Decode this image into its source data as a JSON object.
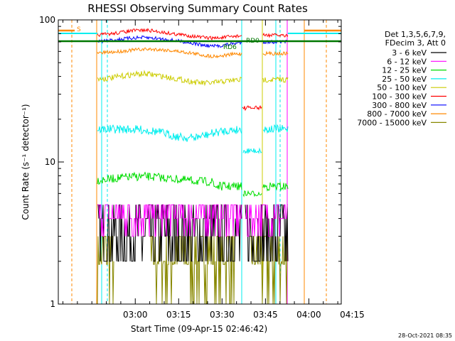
{
  "chart_data": {
    "type": "line",
    "title": "RHESSI Observing Summary Count Rates",
    "xlabel": "Start Time (09-Apr-15 02:46:42)",
    "ylabel": "Count Rate (s⁻¹ detector⁻¹)",
    "y_scale": "log",
    "ylim": [
      1,
      100
    ],
    "xlim_minutes_after_start": [
      -13.3,
      84.5
    ],
    "x_tick_labels": [
      "03:00",
      "03:15",
      "03:30",
      "03:45",
      "04:00",
      "04:15"
    ],
    "x_tick_minutes": [
      13.3,
      28.3,
      43.3,
      58.3,
      73.3,
      88.3
    ],
    "y_tick_labels": [
      "1",
      "10",
      "100"
    ],
    "y_tick_values": [
      1,
      10,
      100
    ],
    "legend": {
      "header_line1": "Det 1,3,5,6,7,9,",
      "header_line2": "FDecim 3, Att 0",
      "placement": "right"
    },
    "series": [
      {
        "name": "3 - 6 keV",
        "color": "#000000"
      },
      {
        "name": "6 - 12 keV",
        "color": "#ff00ff"
      },
      {
        "name": "12 - 25 keV",
        "color": "#00dd00"
      },
      {
        "name": "25 - 50 keV",
        "color": "#00eeee"
      },
      {
        "name": "50 - 100 keV",
        "color": "#cccc00"
      },
      {
        "name": "100 - 300 keV",
        "color": "#ff0000"
      },
      {
        "name": "300 - 800 keV",
        "color": "#0000ff"
      },
      {
        "name": "800 - 7000 keV",
        "color": "#ff8800"
      },
      {
        "name": "7000 - 15000 keV",
        "color": "#888800"
      }
    ],
    "annotations": [
      {
        "text": "S",
        "color": "#ff8800"
      },
      {
        "text": "RD6",
        "color": "#007700"
      },
      {
        "text": "RD0",
        "color": "#007700"
      }
    ],
    "footer": "28-Oct-2021 08:35"
  }
}
